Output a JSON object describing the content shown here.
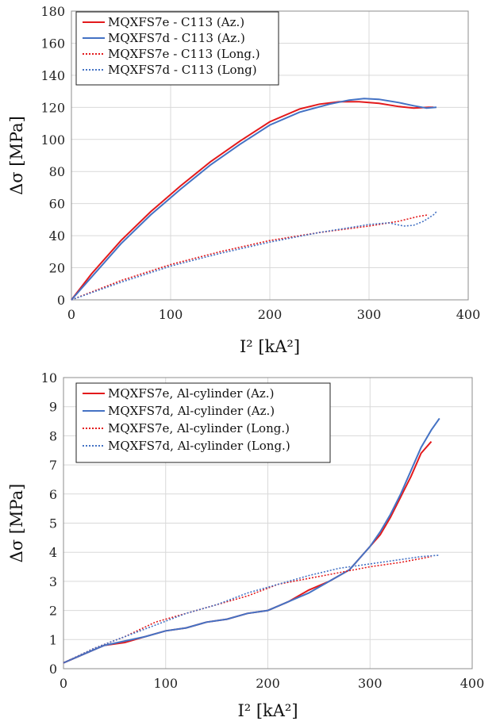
{
  "chart_data": [
    {
      "type": "line",
      "xlabel": "I² [kA²]",
      "ylabel": "Δσ [MPa]",
      "xlim": [
        0,
        400
      ],
      "ylim": [
        0,
        180
      ],
      "xticks": [
        0,
        100,
        200,
        300,
        400
      ],
      "yticks": [
        0,
        20,
        40,
        60,
        80,
        100,
        120,
        140,
        160,
        180
      ],
      "grid": true,
      "legend_position": "top-left",
      "series": [
        {
          "name": "MQXFS7e - C113 (Az.)",
          "color": "#e31a1c",
          "dash": "solid",
          "x": [
            0,
            20,
            50,
            80,
            110,
            140,
            170,
            200,
            230,
            250,
            270,
            290,
            310,
            330,
            345,
            360,
            365
          ],
          "y": [
            0,
            16,
            37,
            55,
            71,
            86,
            99,
            111,
            119,
            122,
            123.5,
            123.5,
            122.5,
            120.5,
            119.5,
            120,
            120
          ]
        },
        {
          "name": "MQXFS7d - C113 (Az.)",
          "color": "#4472c4",
          "dash": "solid",
          "x": [
            0,
            20,
            50,
            80,
            110,
            140,
            170,
            200,
            230,
            260,
            280,
            295,
            310,
            330,
            345,
            358,
            368
          ],
          "y": [
            0,
            14,
            35,
            53,
            69,
            84,
            97,
            109,
            117,
            122,
            124.5,
            125.5,
            125,
            123,
            121,
            119.5,
            120
          ]
        },
        {
          "name": "MQXFS7e - C113 (Long.)",
          "color": "#e31a1c",
          "dash": "dotted",
          "x": [
            0,
            50,
            100,
            150,
            200,
            250,
            300,
            330,
            350,
            360
          ],
          "y": [
            0,
            12,
            22,
            30,
            37,
            42,
            46,
            49,
            52,
            53
          ]
        },
        {
          "name": "MQXFS7d - C113 (Long)",
          "color": "#4472c4",
          "dash": "dotted",
          "x": [
            0,
            50,
            100,
            150,
            200,
            250,
            300,
            320,
            335,
            345,
            355,
            365,
            368
          ],
          "y": [
            0,
            11,
            21,
            29,
            36,
            42,
            47,
            48,
            46,
            46.5,
            49,
            53,
            55
          ]
        }
      ]
    },
    {
      "type": "line",
      "xlabel": "I² [kA²]",
      "ylabel": "Δσ [MPa]",
      "xlim": [
        0,
        400
      ],
      "ylim": [
        0,
        10
      ],
      "xticks": [
        0,
        100,
        200,
        300,
        400
      ],
      "yticks": [
        0,
        1,
        2,
        3,
        4,
        5,
        6,
        7,
        8,
        9,
        10
      ],
      "grid": true,
      "legend_position": "top-left",
      "series": [
        {
          "name": "MQXFS7e, Al-cylinder (Az.)",
          "color": "#e31a1c",
          "dash": "solid",
          "x": [
            0,
            20,
            40,
            60,
            80,
            100,
            120,
            140,
            160,
            180,
            200,
            220,
            240,
            260,
            280,
            290,
            300,
            310,
            320,
            330,
            340,
            350,
            360
          ],
          "y": [
            0.2,
            0.5,
            0.8,
            0.9,
            1.1,
            1.3,
            1.4,
            1.6,
            1.7,
            1.9,
            2.0,
            2.3,
            2.7,
            3.0,
            3.4,
            3.8,
            4.2,
            4.6,
            5.2,
            5.9,
            6.6,
            7.4,
            7.8
          ]
        },
        {
          "name": "MQXFS7d, Al-cylinder (Az.)",
          "color": "#4472c4",
          "dash": "solid",
          "x": [
            0,
            20,
            40,
            60,
            80,
            100,
            120,
            140,
            160,
            180,
            200,
            220,
            240,
            260,
            280,
            290,
            300,
            310,
            320,
            330,
            340,
            350,
            360,
            368
          ],
          "y": [
            0.2,
            0.5,
            0.8,
            0.95,
            1.1,
            1.3,
            1.4,
            1.6,
            1.7,
            1.9,
            2.0,
            2.3,
            2.6,
            3.0,
            3.4,
            3.8,
            4.2,
            4.7,
            5.3,
            6.0,
            6.8,
            7.6,
            8.2,
            8.6
          ]
        },
        {
          "name": "MQXFS7e, Al-cylinder (Long.)",
          "color": "#e31a1c",
          "dash": "dotted",
          "x": [
            0,
            30,
            60,
            90,
            120,
            150,
            180,
            210,
            240,
            270,
            300,
            330,
            360
          ],
          "y": [
            0.2,
            0.7,
            1.1,
            1.6,
            1.9,
            2.2,
            2.5,
            2.9,
            3.1,
            3.3,
            3.5,
            3.65,
            3.85
          ]
        },
        {
          "name": "MQXFS7d, Al-cylinder (Long.)",
          "color": "#4472c4",
          "dash": "dotted",
          "x": [
            0,
            30,
            60,
            90,
            120,
            150,
            180,
            210,
            240,
            270,
            300,
            330,
            350,
            368
          ],
          "y": [
            0.2,
            0.7,
            1.1,
            1.5,
            1.9,
            2.2,
            2.6,
            2.9,
            3.2,
            3.45,
            3.6,
            3.75,
            3.85,
            3.9
          ]
        }
      ]
    }
  ]
}
